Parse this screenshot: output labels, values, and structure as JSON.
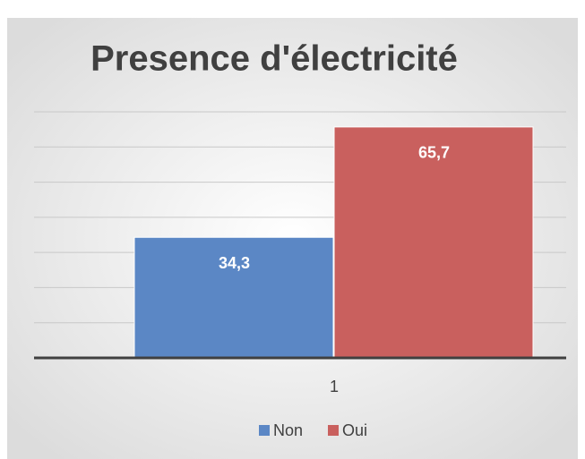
{
  "chart_data": {
    "type": "bar",
    "title": "Presence d'électricité",
    "categories": [
      "1"
    ],
    "series": [
      {
        "name": "Non",
        "color": "#5b87c5",
        "values": [
          34.3
        ],
        "value_labels": [
          "34,3"
        ]
      },
      {
        "name": "Oui",
        "color": "#c9605e",
        "values": [
          65.7
        ],
        "value_labels": [
          "65,7"
        ]
      }
    ],
    "ylim": [
      0,
      70
    ],
    "yticks": [
      0,
      10,
      20,
      30,
      40,
      50,
      60,
      70
    ],
    "grid": true,
    "legend": "bottom"
  }
}
